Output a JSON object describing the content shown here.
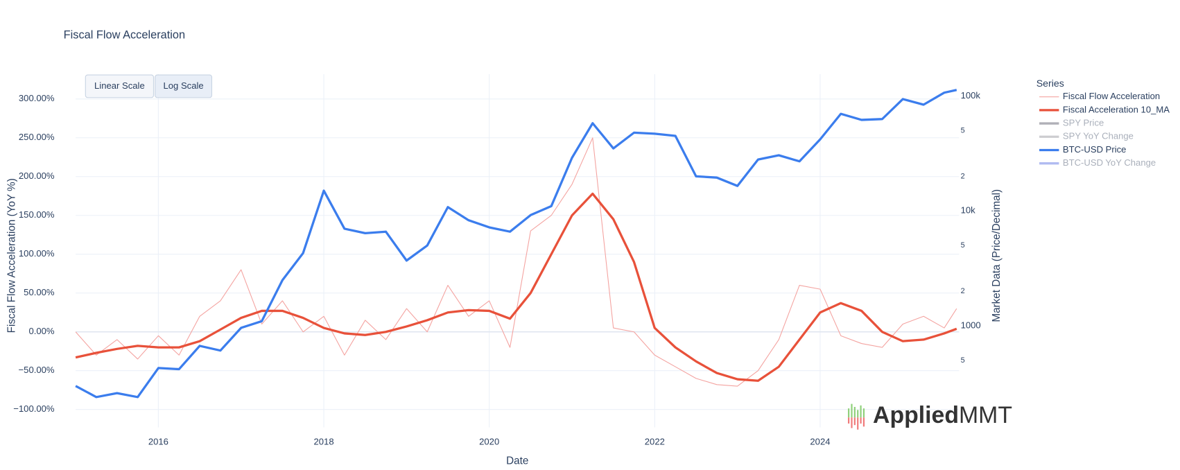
{
  "chart_data": {
    "type": "line",
    "title": "Fiscal Flow Acceleration",
    "xlabel": "Date",
    "ylabel": "Fiscal Flow Acceleration (YoY %)",
    "y2label": "Market Data (Price/Decimal)",
    "legend_title": "Series",
    "legend": "right",
    "grid": true,
    "y2_log": true,
    "xlim": [
      2015,
      2025.68
    ],
    "xticks": [
      2016,
      2018,
      2020,
      2022,
      2024
    ],
    "ylim": [
      -123,
      332
    ],
    "yticks": [
      {
        "value": -100,
        "label": "−100.00%"
      },
      {
        "value": -50,
        "label": "−50.00%"
      },
      {
        "value": 0,
        "label": "0.00%"
      },
      {
        "value": 50,
        "label": "50.00%"
      },
      {
        "value": 100,
        "label": "100.00%"
      },
      {
        "value": 150,
        "label": "150.00%"
      },
      {
        "value": 200,
        "label": "200.00%"
      },
      {
        "value": 250,
        "label": "250.00%"
      },
      {
        "value": 300,
        "label": "300.00%"
      }
    ],
    "y2lim": [
      131,
      155000
    ],
    "y2ticks": [
      {
        "value": 500,
        "label": "5"
      },
      1000,
      {
        "value": 2000,
        "label": "2"
      },
      {
        "value": 5000,
        "label": "5"
      },
      {
        "value": 10000,
        "label": "10k"
      },
      {
        "value": 20000,
        "label": "2"
      },
      {
        "value": 50000,
        "label": "5"
      },
      {
        "value": 100000,
        "label": "100k"
      }
    ],
    "x": [
      2015.0,
      2015.25,
      2015.5,
      2015.75,
      2016.0,
      2016.25,
      2016.5,
      2016.75,
      2017.0,
      2017.25,
      2017.5,
      2017.75,
      2018.0,
      2018.25,
      2018.5,
      2018.75,
      2019.0,
      2019.25,
      2019.5,
      2019.75,
      2020.0,
      2020.25,
      2020.5,
      2020.75,
      2021.0,
      2021.25,
      2021.5,
      2021.75,
      2022.0,
      2022.25,
      2022.5,
      2022.75,
      2023.0,
      2023.25,
      2023.5,
      2023.75,
      2024.0,
      2024.25,
      2024.5,
      2024.75,
      2025.0,
      2025.25,
      2025.5,
      2025.65
    ],
    "series": [
      {
        "name": "Fiscal Flow Acceleration",
        "color": "#f4a3a0",
        "width": 1,
        "values": [
          0,
          -30,
          -10,
          -35,
          -5,
          -30,
          20,
          40,
          80,
          10,
          40,
          0,
          20,
          -30,
          15,
          -10,
          30,
          0,
          60,
          20,
          40,
          -20,
          130,
          150,
          190,
          250,
          5,
          0,
          -30,
          -45,
          -60,
          -68,
          -70,
          -50,
          -10,
          60,
          55,
          -5,
          -15,
          -20,
          10,
          20,
          5,
          30
        ]
      },
      {
        "name": "Fiscal Acceleration 10_MA",
        "color": "#e8513a",
        "width": 3,
        "values": [
          -33,
          -27,
          -22,
          -18,
          -20,
          -20,
          -12,
          3,
          18,
          27,
          27,
          18,
          5,
          -2,
          -4,
          0,
          7,
          15,
          25,
          28,
          27,
          17,
          50,
          100,
          150,
          178,
          145,
          90,
          5,
          -20,
          -38,
          -53,
          -61,
          -63,
          -45,
          -10,
          25,
          37,
          27,
          0,
          -12,
          -10,
          -2,
          4
        ]
      },
      {
        "name": "SPY Price",
        "color": "#a8a8b0",
        "visible": "legendonly"
      },
      {
        "name": "SPY YoY Change",
        "color": "#c8c8cc",
        "visible": "legendonly"
      },
      {
        "name": "BTC-USD Price",
        "color": "#3b7ded",
        "width": 3,
        "axis": "y2",
        "values": [
          300,
          240,
          260,
          240,
          430,
          420,
          670,
          610,
          960,
          1100,
          2500,
          4300,
          15000,
          7000,
          6400,
          6600,
          3700,
          5000,
          10800,
          8300,
          7200,
          6600,
          9200,
          11000,
          29000,
          58000,
          35000,
          48000,
          47000,
          45000,
          20000,
          19500,
          16500,
          28000,
          30500,
          27000,
          42000,
          70000,
          62000,
          63000,
          94000,
          84000,
          107000,
          113000
        ]
      },
      {
        "name": "BTC-USD YoY Change",
        "color": "#a9b4f0",
        "visible": "legendonly"
      }
    ]
  },
  "buttons": [
    "Linear Scale",
    "Log Scale"
  ],
  "logo": [
    "Applied",
    "MMT"
  ]
}
